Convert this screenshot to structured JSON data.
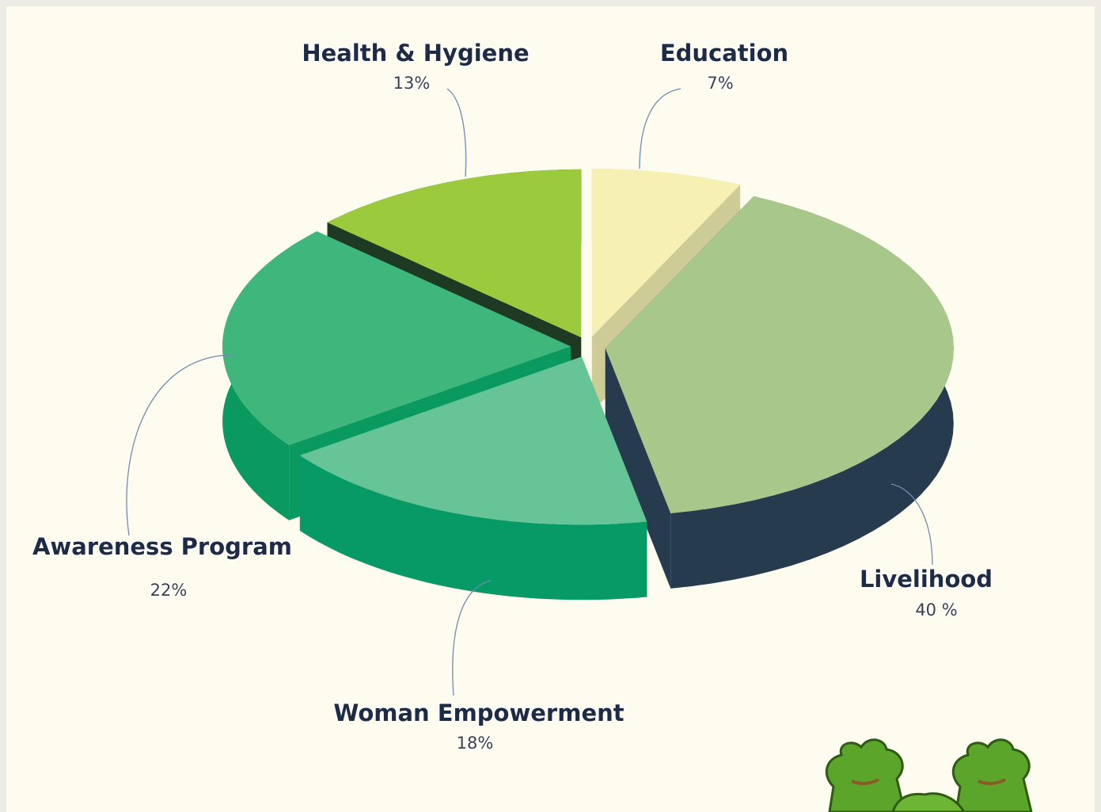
{
  "chart_data": {
    "type": "pie3d",
    "categories": [
      "Education",
      "Livelihood",
      "Woman Empowerment",
      "Awareness Program",
      "Health & Hygiene"
    ],
    "values": [
      7,
      40,
      18,
      22,
      13
    ],
    "value_labels": [
      "7%",
      "40 %",
      "18%",
      "22%",
      "13%"
    ],
    "colors": [
      "#f6f1b3",
      "#a8c78a",
      "#67c496",
      "#3fb67b",
      "#9bcb3d"
    ],
    "side_colors": [
      "#cdcb96",
      "#263c4e",
      "#079a67",
      "#0a9a5f",
      "#1f3a22"
    ]
  }
}
